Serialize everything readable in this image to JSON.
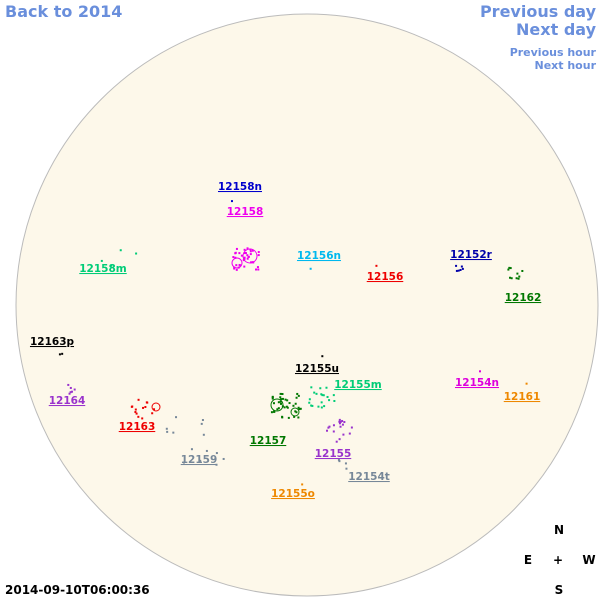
{
  "nav": {
    "back": "Back to 2014",
    "previous_day": "Previous day",
    "next_day": "Next day",
    "previous_hour": "Previous hour",
    "next_hour": "Next hour"
  },
  "regions": [
    {
      "label": "12158n",
      "color": "#0000cc"
    },
    {
      "label": "12158",
      "color": "#ee00ee"
    },
    {
      "label": "12156n",
      "color": "#00b8ee"
    },
    {
      "label": "12156",
      "color": "#ee0000"
    },
    {
      "label": "12152r",
      "color": "#0000aa"
    },
    {
      "label": "12162",
      "color": "#007700"
    },
    {
      "label": "12158m",
      "color": "#00cc77"
    },
    {
      "label": "12163p",
      "color": "#000000"
    },
    {
      "label": "12155u",
      "color": "#000000"
    },
    {
      "label": "12155m",
      "color": "#00cc77"
    },
    {
      "label": "12154n",
      "color": "#dd00dd"
    },
    {
      "label": "12161",
      "color": "#ee8800"
    },
    {
      "label": "12164",
      "color": "#9933cc"
    },
    {
      "label": "12163",
      "color": "#ee0000"
    },
    {
      "label": "12157",
      "color": "#007700"
    },
    {
      "label": "12155",
      "color": "#9933cc"
    },
    {
      "label": "12159",
      "color": "#778899"
    },
    {
      "label": "12154t",
      "color": "#778899"
    },
    {
      "label": "12155o",
      "color": "#ee8800"
    }
  ],
  "compass": {
    "north": "N",
    "east": "E",
    "center": "+",
    "west": "W",
    "south": "S"
  },
  "timestamp": "2014-09-10T06:00:36"
}
